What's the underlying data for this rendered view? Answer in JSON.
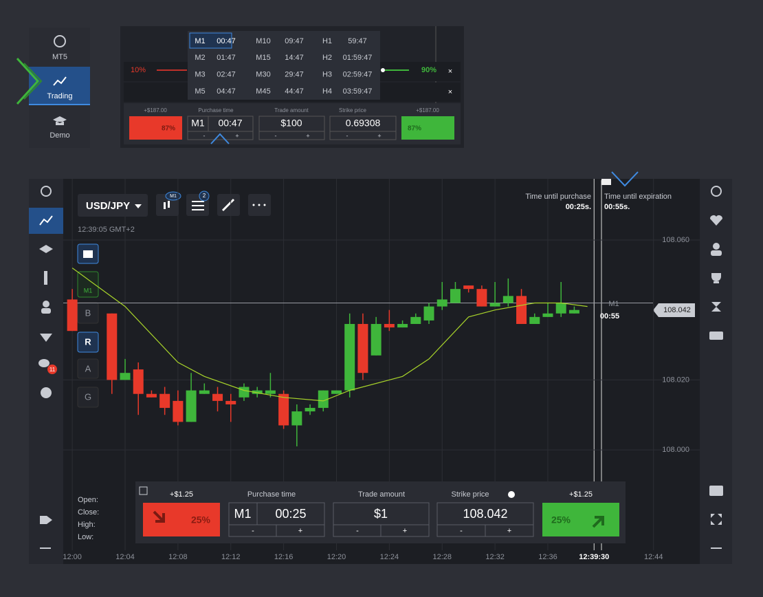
{
  "sidebar": {
    "items": [
      "MT5",
      "Trading",
      "Demo"
    ]
  },
  "top_panel": {
    "timeframes": [
      [
        "M1",
        "00:47",
        "M10",
        "09:47",
        "H1",
        "59:47"
      ],
      [
        "M2",
        "01:47",
        "M15",
        "14:47",
        "H2",
        "01:59:47"
      ],
      [
        "M3",
        "02:47",
        "M30",
        "29:47",
        "H3",
        "02:59:47"
      ],
      [
        "M5",
        "04:47",
        "M45",
        "44:47",
        "H4",
        "03:59:47"
      ]
    ],
    "payout_low": "10%",
    "payout_high": "90%",
    "trade": {
      "profit_down": "+$187.00",
      "purchase_time_label": "Purchase time",
      "trade_amount_label": "Trade amount",
      "strike_price_label": "Strike price",
      "profit_up": "+$187.00",
      "down_pct": "87%",
      "timeframe": "M1",
      "time": "00:47",
      "amount": "$100",
      "strike": "0.69308",
      "up_pct": "87%",
      "minus": "-",
      "plus": "+"
    }
  },
  "main": {
    "symbol": "USD/JPY",
    "badge_tf": "M1",
    "badge_count": "2",
    "clock": "12:39:05 GMT+2",
    "tool_tf": "M1",
    "tools": [
      "B",
      "R",
      "A",
      "G"
    ],
    "chat_badge": "11",
    "time_until_purchase_label": "Time until purchase",
    "time_until_purchase": "00:25s.",
    "time_until_expiration_label": "Time until expiration",
    "time_until_expiration": "00:55s.",
    "marker_tf": "M1",
    "marker_time": "00:55",
    "ohlc_labels": [
      "Open:",
      "Close:",
      "High:",
      "Low:"
    ],
    "trade": {
      "profit_down": "+$1.25",
      "purchase_time_label": "Purchase time",
      "trade_amount_label": "Trade amount",
      "strike_price_label": "Strike price",
      "profit_up": "+$1.25",
      "down_pct": "25%",
      "timeframe": "M1",
      "time": "00:25",
      "amount": "$1",
      "strike": "108.042",
      "up_pct": "25%",
      "minus": "-",
      "plus": "+"
    },
    "chart": {
      "type": "candlestick",
      "xlim": [
        "11:59:19",
        "12:47:30"
      ],
      "ylim": [
        107.9713,
        108.0775
      ],
      "xticks": [
        "12:00",
        "12:04",
        "12:08",
        "12:12",
        "12:16",
        "12:20",
        "12:24",
        "12:28",
        "12:32",
        "12:36",
        "12:39:30",
        "12:44"
      ],
      "yticks": [
        {
          "value": 108.06,
          "label": "108.060"
        },
        {
          "value": 108.02,
          "label": "108.020"
        },
        {
          "value": 108.0,
          "label": "108.000"
        }
      ],
      "current_price": 108.042,
      "up_color": "#3fb63b",
      "down_color": "#e8392a",
      "ma_color": "#a8d42a",
      "candles": [
        {
          "time": "12:00",
          "open": 108.043,
          "high": 108.046,
          "low": 108.034,
          "close": 108.034
        },
        {
          "time": "12:03",
          "open": 108.039,
          "high": 108.039,
          "low": 108.016,
          "close": 108.02
        },
        {
          "time": "12:04",
          "open": 108.02,
          "high": 108.026,
          "low": 108.02,
          "close": 108.022
        },
        {
          "time": "12:05",
          "open": 108.023,
          "high": 108.025,
          "low": 108.01,
          "close": 108.016
        },
        {
          "time": "12:06",
          "open": 108.016,
          "high": 108.017,
          "low": 108.015,
          "close": 108.015
        },
        {
          "time": "12:07",
          "open": 108.016,
          "high": 108.018,
          "low": 108.01,
          "close": 108.012
        },
        {
          "time": "12:08",
          "open": 108.014,
          "high": 108.017,
          "low": 108.007,
          "close": 108.008
        },
        {
          "time": "12:09",
          "open": 108.008,
          "high": 108.022,
          "low": 108.008,
          "close": 108.017
        },
        {
          "time": "12:10",
          "open": 108.016,
          "high": 108.019,
          "low": 108.016,
          "close": 108.017
        },
        {
          "time": "12:11",
          "open": 108.016,
          "high": 108.018,
          "low": 108.011,
          "close": 108.014
        },
        {
          "time": "12:12",
          "open": 108.014,
          "high": 108.016,
          "low": 108.008,
          "close": 108.013
        },
        {
          "time": "12:13",
          "open": 108.015,
          "high": 108.019,
          "low": 108.014,
          "close": 108.018
        },
        {
          "time": "12:14",
          "open": 108.016,
          "high": 108.018,
          "low": 108.015,
          "close": 108.017
        },
        {
          "time": "12:15",
          "open": 108.016,
          "high": 108.022,
          "low": 108.015,
          "close": 108.017
        },
        {
          "time": "12:16",
          "open": 108.016,
          "high": 108.017,
          "low": 108.006,
          "close": 108.007
        },
        {
          "time": "12:17",
          "open": 108.007,
          "high": 108.013,
          "low": 108.001,
          "close": 108.011
        },
        {
          "time": "12:18",
          "open": 108.011,
          "high": 108.013,
          "low": 108.01,
          "close": 108.012
        },
        {
          "time": "12:19",
          "open": 108.012,
          "high": 108.017,
          "low": 108.011,
          "close": 108.017
        },
        {
          "time": "12:20",
          "open": 108.016,
          "high": 108.017,
          "low": 108.016,
          "close": 108.017
        },
        {
          "time": "12:21",
          "open": 108.017,
          "high": 108.039,
          "low": 108.015,
          "close": 108.036
        },
        {
          "time": "12:22",
          "open": 108.036,
          "high": 108.039,
          "low": 108.02,
          "close": 108.022
        },
        {
          "time": "12:23",
          "open": 108.027,
          "high": 108.038,
          "low": 108.027,
          "close": 108.036
        },
        {
          "time": "12:24",
          "open": 108.036,
          "high": 108.04,
          "low": 108.034,
          "close": 108.035
        },
        {
          "time": "12:25",
          "open": 108.035,
          "high": 108.037,
          "low": 108.035,
          "close": 108.036
        },
        {
          "time": "12:26",
          "open": 108.036,
          "high": 108.039,
          "low": 108.036,
          "close": 108.038
        },
        {
          "time": "12:27",
          "open": 108.037,
          "high": 108.042,
          "low": 108.036,
          "close": 108.041
        },
        {
          "time": "12:28",
          "open": 108.041,
          "high": 108.048,
          "low": 108.04,
          "close": 108.043
        },
        {
          "time": "12:29",
          "open": 108.042,
          "high": 108.048,
          "low": 108.042,
          "close": 108.046
        },
        {
          "time": "12:30",
          "open": 108.047,
          "high": 108.047,
          "low": 108.045,
          "close": 108.046
        },
        {
          "time": "12:31",
          "open": 108.046,
          "high": 108.047,
          "low": 108.041,
          "close": 108.041
        },
        {
          "time": "12:32",
          "open": 108.041,
          "high": 108.048,
          "low": 108.041,
          "close": 108.042
        },
        {
          "time": "12:33",
          "open": 108.042,
          "high": 108.049,
          "low": 108.041,
          "close": 108.044
        },
        {
          "time": "12:34",
          "open": 108.044,
          "high": 108.046,
          "low": 108.036,
          "close": 108.036
        },
        {
          "time": "12:35",
          "open": 108.036,
          "high": 108.039,
          "low": 108.036,
          "close": 108.038
        },
        {
          "time": "12:36",
          "open": 108.038,
          "high": 108.042,
          "low": 108.038,
          "close": 108.039
        },
        {
          "time": "12:37",
          "open": 108.039,
          "high": 108.048,
          "low": 108.038,
          "close": 108.042
        },
        {
          "time": "12:38",
          "open": 108.039,
          "high": 108.041,
          "low": 108.039,
          "close": 108.04
        }
      ],
      "ma": {
        "times": [
          "12:00",
          "12:04",
          "12:08",
          "12:10",
          "12:13",
          "12:16",
          "12:19",
          "12:21",
          "12:25",
          "12:27",
          "12:30",
          "12:32",
          "12:35",
          "12:37",
          "12:39"
        ],
        "values": [
          108.052,
          108.041,
          108.025,
          108.021,
          108.017,
          108.015,
          108.014,
          108.017,
          108.021,
          108.026,
          108.038,
          108.04,
          108.042,
          108.042,
          108.041
        ]
      }
    }
  }
}
